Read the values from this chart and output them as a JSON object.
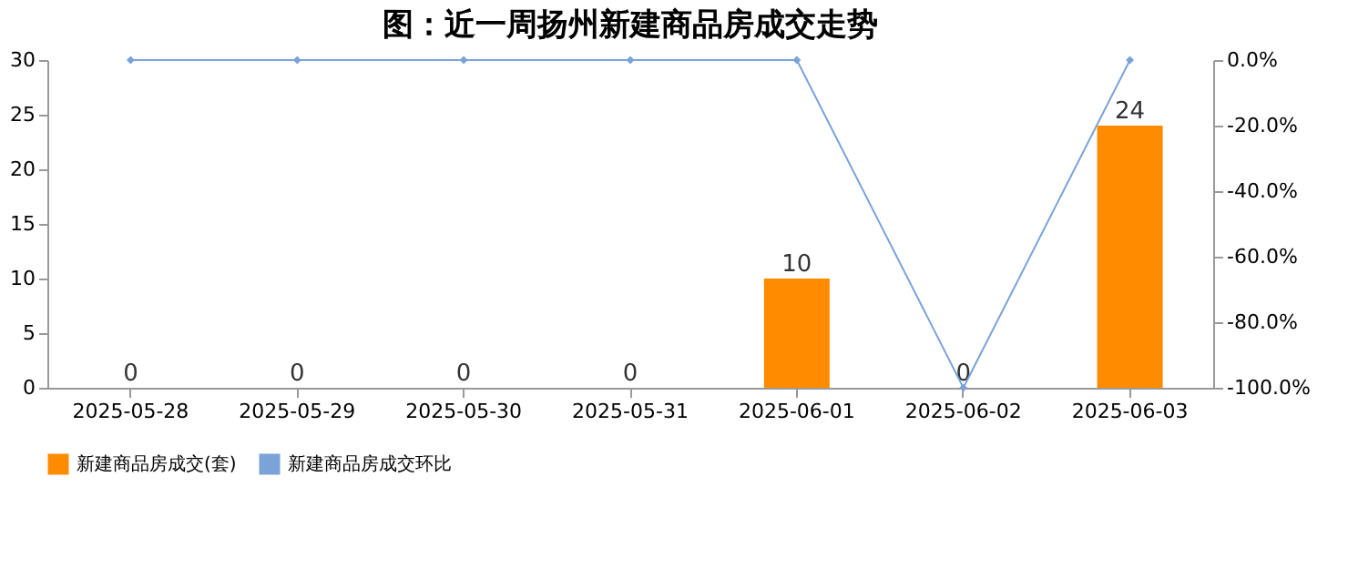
{
  "chart_data": {
    "type": "bar",
    "title": "图：近一周扬州新建商品房成交走势",
    "categories": [
      "2025-05-28",
      "2025-05-29",
      "2025-05-30",
      "2025-05-31",
      "2025-06-01",
      "2025-06-02",
      "2025-06-03"
    ],
    "series": [
      {
        "name": "新建商品房成交(套)",
        "color": "#ff8c00",
        "values": [
          0,
          0,
          0,
          0,
          10,
          0,
          24
        ],
        "value_labels": [
          "0",
          "0",
          "0",
          "0",
          "10",
          "0",
          "24"
        ]
      },
      {
        "name": "新建商品房成交环比",
        "color": "#7ba3d8",
        "type": "line",
        "axis": "y2",
        "values": [
          0,
          0,
          0,
          0,
          0,
          -100,
          0
        ]
      }
    ],
    "ylim": [
      0,
      30
    ],
    "yticks": [
      0,
      5,
      10,
      15,
      20,
      25,
      30
    ],
    "y2lim": [
      -100,
      0
    ],
    "y2ticks": [
      {
        "value": 0,
        "label": "0.0%"
      },
      {
        "value": -20,
        "label": "-20.0%"
      },
      {
        "value": -40,
        "label": "-40.0%"
      },
      {
        "value": -60,
        "label": "-60.0%"
      },
      {
        "value": -80,
        "label": "-80.0%"
      },
      {
        "value": -100,
        "label": "-100.0%"
      }
    ],
    "grid": false,
    "legend": "bottom",
    "marker": "diamond",
    "line_style": "solid"
  }
}
